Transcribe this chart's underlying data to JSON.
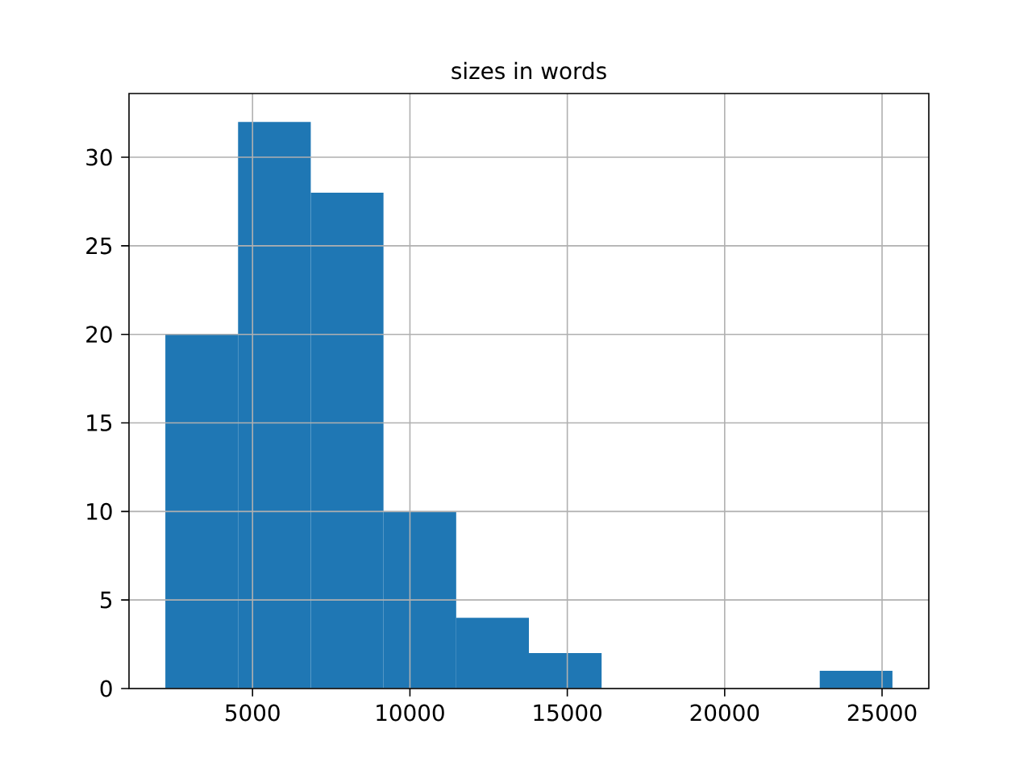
{
  "chart_data": {
    "type": "histogram",
    "title": "sizes in words",
    "bins": [
      2230,
      4540,
      6850,
      9160,
      11470,
      13780,
      16090,
      18400,
      20710,
      23020,
      25330
    ],
    "values": [
      20,
      32,
      28,
      10,
      4,
      2,
      0,
      0,
      0,
      1
    ],
    "color": "#1f77b4",
    "xlim": [
      1075,
      26485
    ],
    "ylim": [
      0,
      33.6
    ],
    "xticks": [
      5000,
      10000,
      15000,
      20000,
      25000
    ],
    "yticks": [
      0,
      5,
      10,
      15,
      20,
      25,
      30
    ],
    "grid": true
  }
}
